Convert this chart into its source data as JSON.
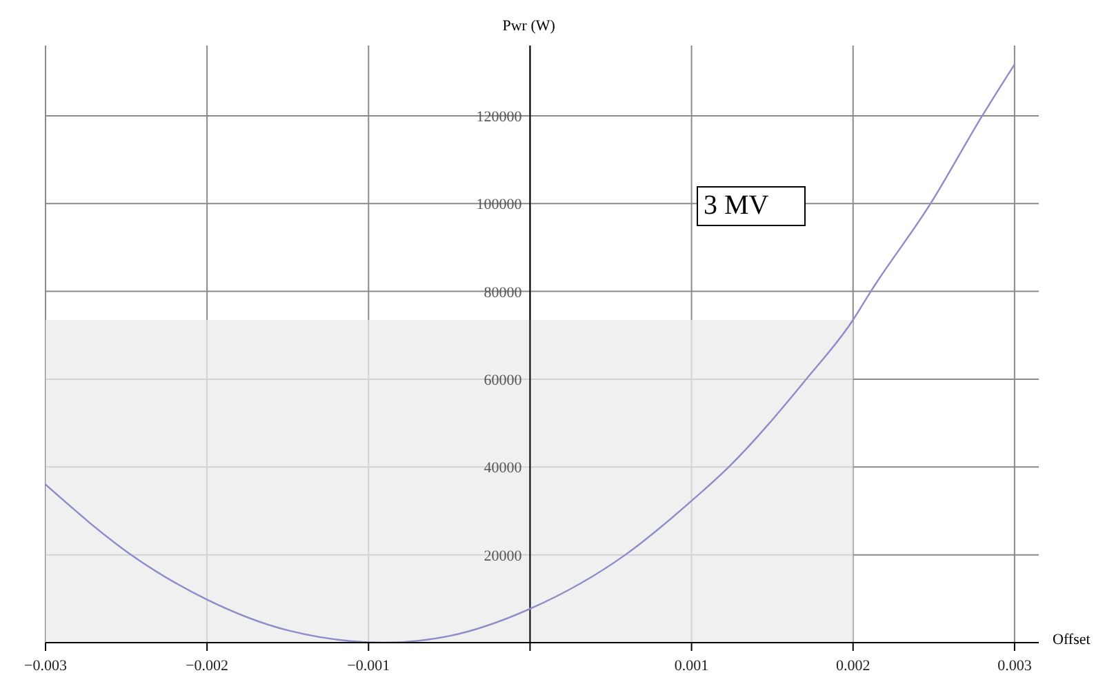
{
  "chart_data": {
    "type": "line",
    "xlabel": "Offset",
    "ylabel": "Pwr (W)",
    "annotations": [
      "3 MV"
    ],
    "series": [
      {
        "color": "#8c8cc8",
        "x": [
          -0.003,
          -0.00247,
          -0.002,
          -0.0015,
          -0.0009,
          -0.0005,
          0,
          0.00059,
          0.001,
          0.00123,
          0.00171,
          0.002,
          0.00211,
          0.00248,
          0.0028,
          0.003
        ],
        "values": [
          36000,
          20000,
          9800,
          2800,
          0,
          1500,
          7700,
          20000,
          32300,
          40000,
          60000,
          73500,
          80000,
          100000,
          120000,
          131700
        ]
      }
    ],
    "xlim": [
      -0.003,
      0.00315
    ],
    "ylim": [
      0,
      136000
    ],
    "xticks": [
      {
        "value": -0.003,
        "label": "−0.003"
      },
      {
        "value": -0.002,
        "label": "−0.002"
      },
      {
        "value": -0.001,
        "label": "−0.001"
      },
      {
        "value": 0,
        "label": null
      },
      0.001,
      0.002,
      0.003
    ],
    "yticks": [
      {
        "value": 0,
        "label": null
      },
      20000,
      40000,
      60000,
      80000,
      100000,
      120000
    ],
    "bands": [
      {
        "axis": "y",
        "from": 0,
        "to": 73500,
        "color": "#ebebeb"
      }
    ],
    "grid": true,
    "marker": "none",
    "line_style": "solid"
  }
}
